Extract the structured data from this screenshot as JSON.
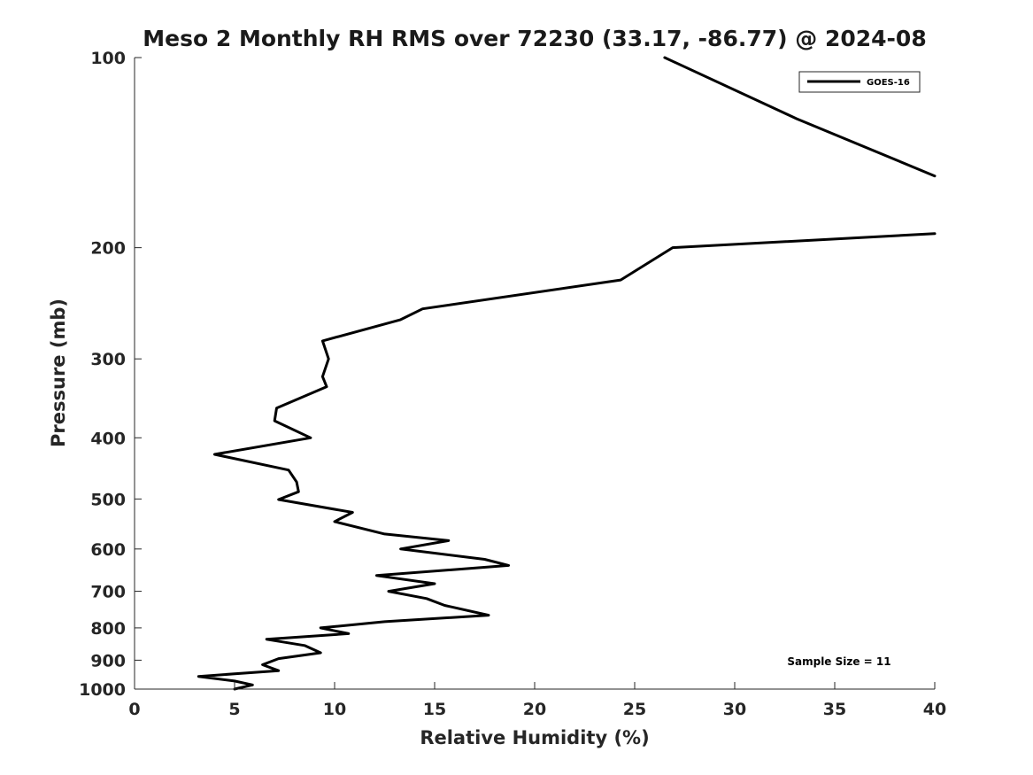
{
  "chart_data": {
    "type": "line",
    "title": "Meso 2 Monthly RH RMS over 72230 (33.17, -86.77) @ 2024-08",
    "xlabel": "Relative Humidity (%)",
    "ylabel": "Pressure (mb)",
    "xlim": [
      0,
      40
    ],
    "ylim": [
      100,
      1000
    ],
    "y_scale": "log",
    "y_reversed": true,
    "x_ticks": [
      "0",
      "5",
      "10",
      "15",
      "20",
      "25",
      "30",
      "35",
      "40"
    ],
    "y_ticks": [
      "100",
      "200",
      "300",
      "400",
      "500",
      "600",
      "700",
      "800",
      "900",
      "1000"
    ],
    "legend": {
      "placement": "top-right",
      "entries": [
        "GOES-16"
      ]
    },
    "annotation": "Sample Size = 11",
    "series": [
      {
        "name": "GOES-16",
        "color": "#000000",
        "segments": [
          [
            [
              26.5,
              100
            ],
            [
              33.1,
              125
            ],
            [
              40,
              154
            ]
          ],
          [
            [
              40,
              190
            ],
            [
              26.9,
              200
            ],
            [
              24.3,
              225
            ],
            [
              14.4,
              250
            ],
            [
              13.3,
              260
            ],
            [
              9.4,
              281
            ],
            [
              9.7,
              300
            ],
            [
              9.4,
              320
            ],
            [
              9.6,
              332
            ],
            [
              7.1,
              359
            ],
            [
              7.0,
              376
            ],
            [
              8.8,
              400
            ],
            [
              4.0,
              425
            ],
            [
              7.7,
              450
            ],
            [
              8.1,
              470
            ],
            [
              8.2,
              487
            ],
            [
              7.2,
              501
            ],
            [
              10.9,
              525
            ],
            [
              10.0,
              543
            ],
            [
              12.5,
              568
            ],
            [
              15.7,
              582
            ],
            [
              13.3,
              600
            ],
            [
              17.5,
              623
            ],
            [
              18.7,
              637
            ],
            [
              12.1,
              661
            ],
            [
              15.0,
              681
            ],
            [
              12.7,
              700
            ],
            [
              14.6,
              719
            ],
            [
              15.5,
              737
            ],
            [
              17.7,
              764
            ],
            [
              12.5,
              782
            ],
            [
              9.3,
              800
            ],
            [
              10.7,
              817
            ],
            [
              6.6,
              834
            ],
            [
              8.5,
              853
            ],
            [
              9.3,
              876
            ],
            [
              7.2,
              895
            ],
            [
              6.4,
              915
            ],
            [
              7.2,
              935
            ],
            [
              3.2,
              955
            ],
            [
              5.0,
              971
            ],
            [
              5.9,
              985
            ],
            [
              5.0,
              1000
            ]
          ]
        ]
      }
    ]
  }
}
